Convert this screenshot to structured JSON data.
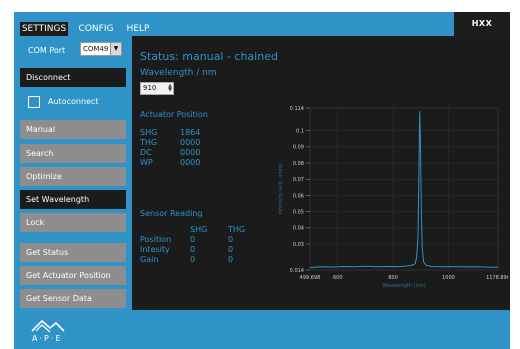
{
  "brand": {
    "label": "HXX"
  },
  "tabs": [
    {
      "label": "SETTINGS",
      "active": true
    },
    {
      "label": "CONFIG",
      "active": false
    },
    {
      "label": "HELP",
      "active": false
    }
  ],
  "sidebar": {
    "com_port_label": "COM Port",
    "com_port_value": "COM49",
    "disconnect_label": "Disconnect",
    "autoconnect_label": "Autoconnect",
    "buttons": {
      "manual": "Manual",
      "search": "Search",
      "optimize": "Optimize",
      "set_wavelength": "Set Wavelength",
      "lock": "Lock",
      "get_status": "Get Status",
      "get_actuator_position": "Get Actuator Position",
      "get_sensor_data": "Get Sensor Data"
    }
  },
  "main": {
    "status_text": "Status:  manual - chained",
    "wavelength_label": "Wavelength / nm",
    "wavelength_value": "910",
    "actuator_title": "Actuator Position",
    "actuators": [
      {
        "name": "SHG",
        "value": "1864"
      },
      {
        "name": "THG",
        "value": "0000"
      },
      {
        "name": "DC",
        "value": "0000"
      },
      {
        "name": "WP",
        "value": "0000"
      }
    ],
    "sensor_title": "Sensor Reading",
    "sensor_columns": [
      "SHG",
      "THG"
    ],
    "sensor_rows": [
      {
        "label": "Position",
        "shg": "0",
        "thg": "0"
      },
      {
        "label": "Intesity",
        "shg": "0",
        "thg": "0"
      },
      {
        "label": "Gain",
        "shg": "0",
        "thg": "0"
      }
    ]
  },
  "footer": {
    "logo_text": "A·P·E"
  },
  "colors": {
    "accent": "#2f93c7",
    "panel": "#1b1b1b",
    "button_gray": "#8d8d8d",
    "line": "#2f93c7"
  },
  "chart_data": {
    "type": "line",
    "xlabel": "Wavelength (nm)",
    "ylabel": "Intensity (arb. units)",
    "xlim": [
      499.698,
      1178.896
    ],
    "ylim": [
      0.014,
      0.114
    ],
    "x_ticks": [
      "499.698",
      "600",
      "800",
      "1000",
      "1178.896"
    ],
    "x_tick_values": [
      499.698,
      600,
      800,
      1000,
      1178.896
    ],
    "y_ticks": [
      "0.114",
      "0.1",
      "0.09",
      "0.08",
      "0.07",
      "0.06",
      "0.05",
      "0.04",
      "0.03",
      "0.014"
    ],
    "y_tick_values": [
      0.114,
      0.1,
      0.09,
      0.08,
      0.07,
      0.06,
      0.05,
      0.04,
      0.03,
      0.014
    ],
    "grid": true,
    "series": [
      {
        "x": [
          499.698,
          540,
          580,
          620,
          660,
          700,
          740,
          780,
          820,
          850,
          870,
          880,
          885,
          890,
          893,
          896,
          899,
          902,
          905,
          910,
          920,
          940,
          980,
          1020,
          1060,
          1100,
          1140,
          1178.896
        ],
        "y": [
          0.0155,
          0.016,
          0.0158,
          0.0162,
          0.016,
          0.0163,
          0.016,
          0.0162,
          0.0161,
          0.0165,
          0.017,
          0.018,
          0.022,
          0.035,
          0.07,
          0.112,
          0.09,
          0.05,
          0.028,
          0.019,
          0.0168,
          0.0162,
          0.016,
          0.0161,
          0.0159,
          0.016,
          0.0158,
          0.0157
        ]
      }
    ]
  }
}
